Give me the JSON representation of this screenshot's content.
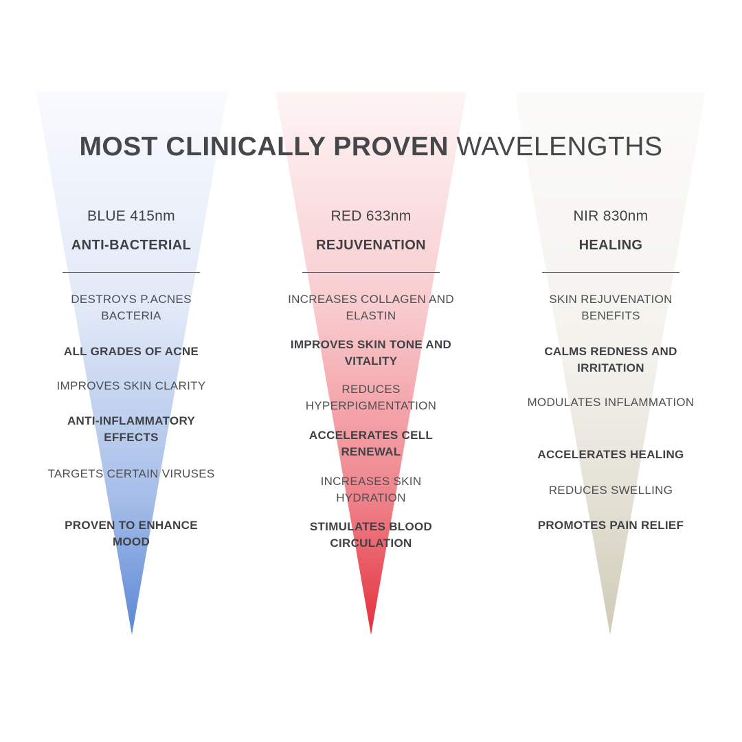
{
  "title": {
    "bold": "MOST CLINICALLY PROVEN",
    "light": "WAVELENGTHS"
  },
  "colors": {
    "blue_cone": "#5b87d6",
    "red_cone": "#e42f3c",
    "nir_cone": "#dcd8c8",
    "text": "#45474b"
  },
  "columns": [
    {
      "wavelength": "BLUE 415nm",
      "benefit": "ANTI-BACTERIAL",
      "items": [
        {
          "text": "DESTROYS P.ACNES BACTERIA",
          "strong": false
        },
        {
          "text": "ALL GRADES OF ACNE",
          "strong": true
        },
        {
          "text": "IMPROVES SKIN CLARITY",
          "strong": false
        },
        {
          "text": "ANTI-INFLAMMATORY EFFECTS",
          "strong": true
        },
        {
          "text": "TARGETS CERTAIN VIRUSES",
          "strong": false
        },
        {
          "text": "PROVEN TO ENHANCE MOOD",
          "strong": true
        }
      ]
    },
    {
      "wavelength": "RED 633nm",
      "benefit": "REJUVENATION",
      "items": [
        {
          "text": "INCREASES COLLAGEN AND ELASTIN",
          "strong": false
        },
        {
          "text": "IMPROVES SKIN TONE AND VITALITY",
          "strong": true
        },
        {
          "text": "REDUCES HYPERPIGMENTATION",
          "strong": false
        },
        {
          "text": "ACCELERATES CELL RENEWAL",
          "strong": true
        },
        {
          "text": "INCREASES SKIN HYDRATION",
          "strong": false
        },
        {
          "text": "STIMULATES BLOOD CIRCULATION",
          "strong": true
        }
      ]
    },
    {
      "wavelength": "NIR 830nm",
      "benefit": "HEALING",
      "items": [
        {
          "text": "SKIN REJUVENATION BENEFITS",
          "strong": false
        },
        {
          "text": "CALMS REDNESS AND IRRITATION",
          "strong": true
        },
        {
          "text": "MODULATES INFLAMMATION",
          "strong": false
        },
        {
          "text": "ACCELERATES HEALING",
          "strong": true
        },
        {
          "text": "REDUCES SWELLING",
          "strong": false
        },
        {
          "text": "PROMOTES PAIN RELIEF",
          "strong": true
        }
      ]
    }
  ]
}
